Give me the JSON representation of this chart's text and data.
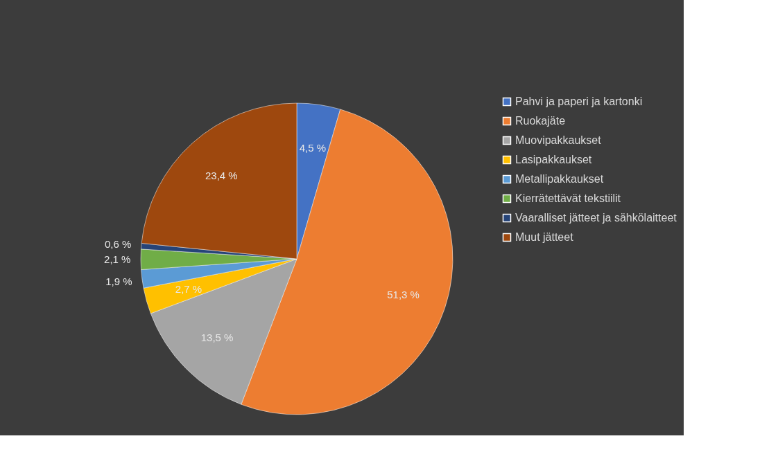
{
  "chart_data": {
    "type": "pie",
    "categories": [
      "Pahvi ja paperi ja kartonki",
      "Ruokajäte",
      "Muovipakkaukset",
      "Lasipakkaukset",
      "Metallipakkaukset",
      "Kierrätettävät tekstiilit",
      "Vaaralliset jätteet ja sähkölaitteet",
      "Muut jätteet"
    ],
    "values": [
      4.5,
      51.3,
      13.5,
      2.7,
      1.9,
      2.1,
      0.6,
      23.4
    ],
    "value_labels": [
      "4,5 %",
      "51,3 %",
      "13,5 %",
      "2,7 %",
      "1,9 %",
      "2,1 %",
      "0,6 %",
      "23,4 %"
    ],
    "colors": [
      "#4472c4",
      "#ed7d31",
      "#a5a5a5",
      "#ffc000",
      "#5b9bd5",
      "#70ad47",
      "#264478",
      "#9e480e"
    ],
    "legend": "right"
  }
}
